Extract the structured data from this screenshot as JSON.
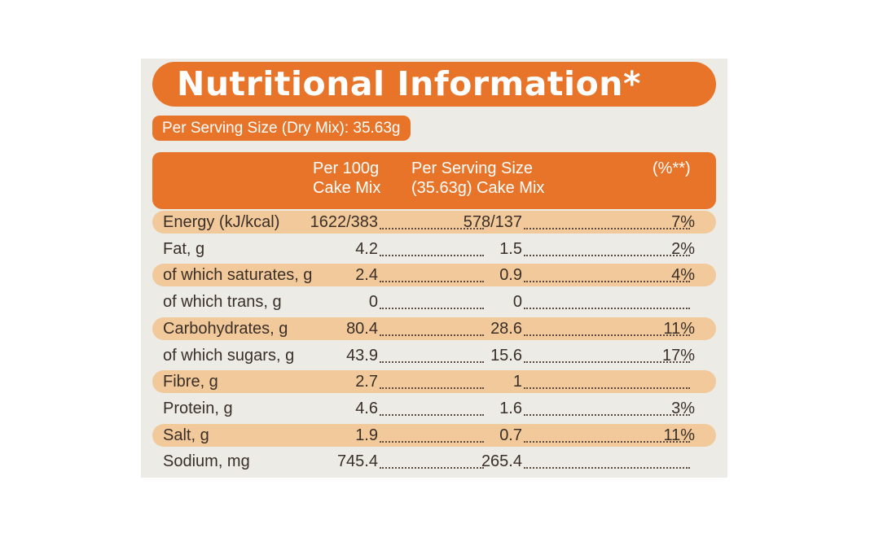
{
  "title": "Nutritional Information*",
  "serving_size": "Per Serving Size (Dry Mix): 35.63g",
  "columns": {
    "per100_line1": "Per 100g",
    "per100_line2": "Cake Mix",
    "serving_line1": "Per Serving Size",
    "serving_line2": "(35.63g) Cake Mix",
    "pct": "(%**)"
  },
  "colors": {
    "accent": "#e8742a",
    "row_shade": "#f1c99a",
    "panel_bg": "#ecebe6",
    "text": "#3a2f28"
  },
  "rows": [
    {
      "label": "Energy (kJ/kcal)",
      "per100": "1622/383",
      "serving": "578/137",
      "pct": "7%"
    },
    {
      "label": "Fat, g",
      "per100": "4.2",
      "serving": "1.5",
      "pct": "2%"
    },
    {
      "label": "of which saturates, g",
      "per100": "2.4",
      "serving": "0.9",
      "pct": "4%"
    },
    {
      "label": "of which trans, g",
      "per100": "0",
      "serving": "0",
      "pct": ""
    },
    {
      "label": "Carbohydrates, g",
      "per100": "80.4",
      "serving": "28.6",
      "pct": "11%"
    },
    {
      "label": "of which sugars, g",
      "per100": "43.9",
      "serving": "15.6",
      "pct": "17%"
    },
    {
      "label": "Fibre, g",
      "per100": "2.7",
      "serving": "1",
      "pct": ""
    },
    {
      "label": "Protein, g",
      "per100": "4.6",
      "serving": "1.6",
      "pct": "3%"
    },
    {
      "label": "Salt, g",
      "per100": "1.9",
      "serving": "0.7",
      "pct": "11%"
    },
    {
      "label": "Sodium, mg",
      "per100": "745.4",
      "serving": "265.4",
      "pct": ""
    }
  ]
}
